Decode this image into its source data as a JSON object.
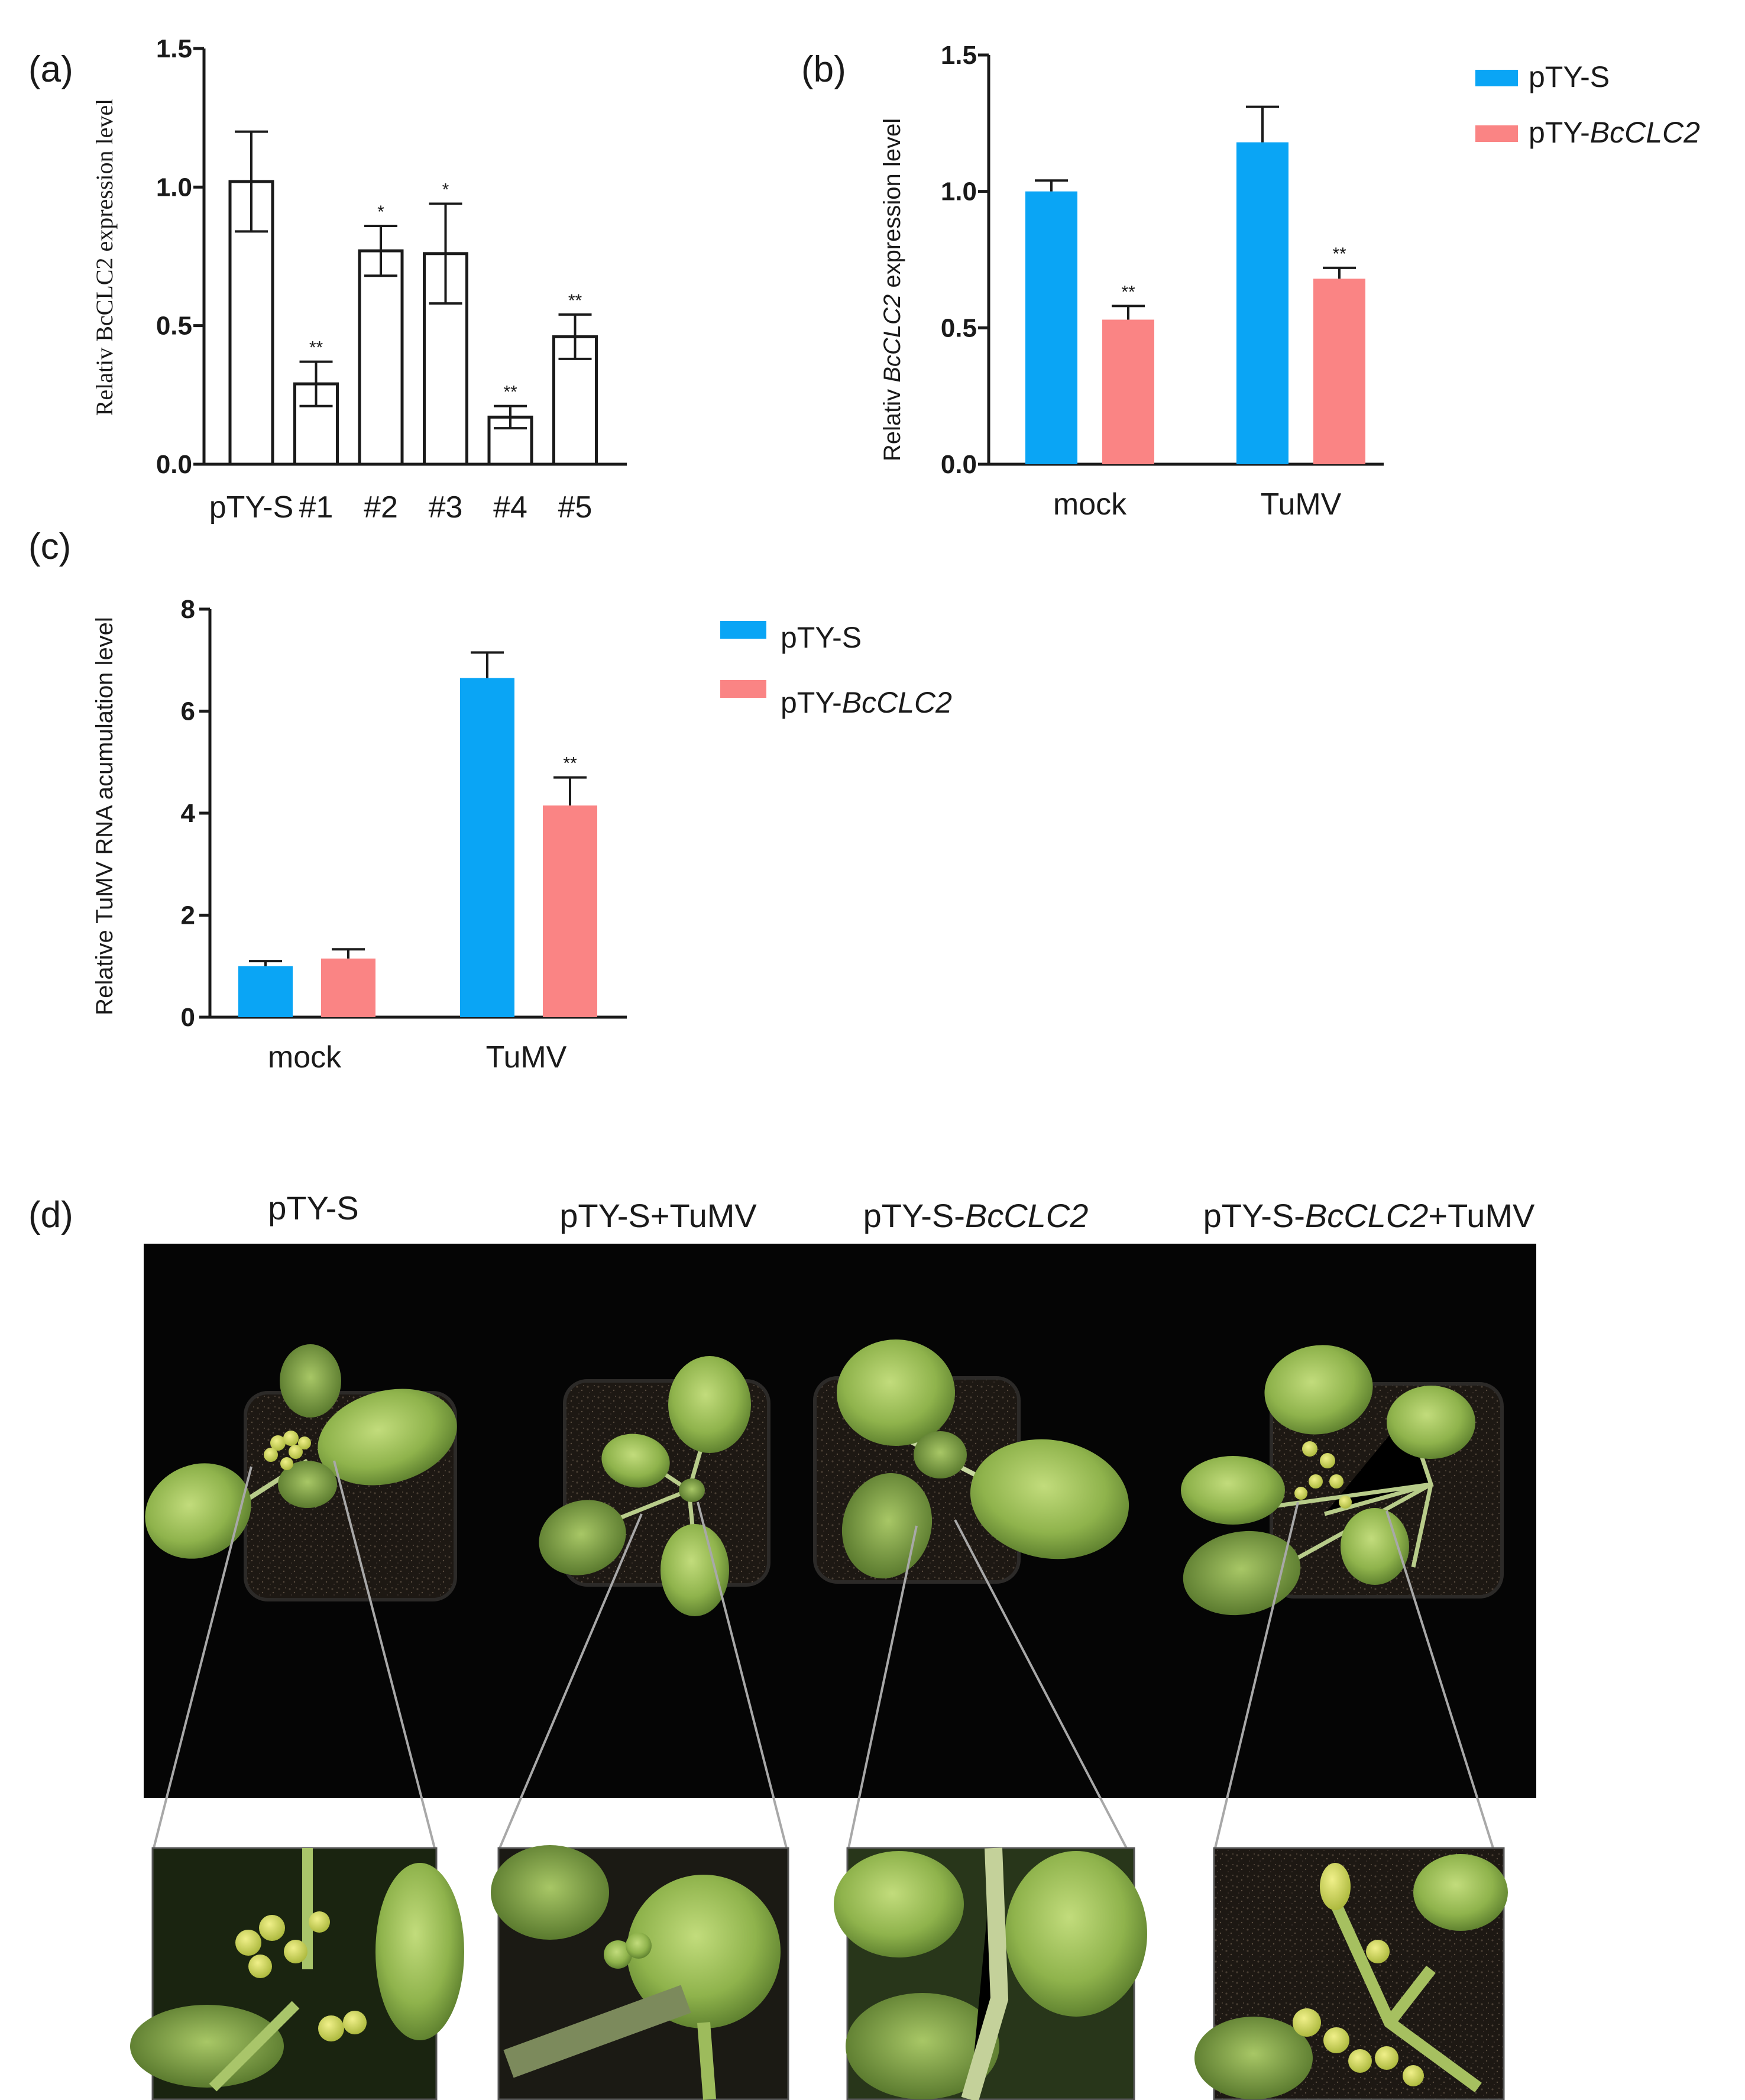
{
  "panels": {
    "a": "(a)",
    "b": "(b)",
    "c": "(c)",
    "d": "(d)"
  },
  "colors": {
    "pTY-S": "#0aa5f5",
    "pTY-BcCLC2": "#fa8484",
    "axis": "#1a1a1a",
    "photo_bg": "#050505"
  },
  "chart_data": [
    {
      "id": "a",
      "type": "bar",
      "ylabel": "Relativ BcCLC2 expression level",
      "ylim": [
        0,
        1.5
      ],
      "yticks": [
        "0.0",
        "0.5",
        "1.0",
        "1.5"
      ],
      "categories": [
        "pTY-S",
        "#1",
        "#2",
        "#3",
        "#4",
        "#5"
      ],
      "values": [
        1.02,
        0.29,
        0.77,
        0.76,
        0.17,
        0.46
      ],
      "errors": [
        0.18,
        0.08,
        0.09,
        0.18,
        0.04,
        0.08
      ],
      "significance": [
        "",
        "**",
        "*",
        "*",
        "**",
        "**"
      ],
      "fill": "none",
      "grid": false
    },
    {
      "id": "b",
      "type": "bar",
      "ylabel": "Relativ BcCLC2 expression level",
      "ylim": [
        0,
        1.5
      ],
      "yticks": [
        "0.0",
        "0.5",
        "1.0",
        "1.5"
      ],
      "categories": [
        "mock",
        "TuMV"
      ],
      "series": [
        {
          "name": "pTY-S",
          "values": [
            1.0,
            1.18
          ],
          "errors": [
            0.04,
            0.13
          ],
          "significance": [
            "",
            ""
          ]
        },
        {
          "name": "pTY-BcCLC2",
          "values": [
            0.53,
            0.68
          ],
          "errors": [
            0.05,
            0.04
          ],
          "significance": [
            "**",
            "**"
          ]
        }
      ],
      "legend": "top-right",
      "grid": false
    },
    {
      "id": "c",
      "type": "bar",
      "ylabel": "Relative TuMV RNA acumulation level",
      "ylim": [
        0,
        8
      ],
      "yticks": [
        "0",
        "2",
        "4",
        "6",
        "8"
      ],
      "categories": [
        "mock",
        "TuMV"
      ],
      "series": [
        {
          "name": "pTY-S",
          "values": [
            1.0,
            6.65
          ],
          "errors": [
            0.1,
            0.5
          ],
          "significance": [
            "",
            ""
          ]
        },
        {
          "name": "pTY-BcCLC2",
          "values": [
            1.15,
            4.15
          ],
          "errors": [
            0.18,
            0.55
          ],
          "significance": [
            "",
            "**"
          ]
        }
      ],
      "legend": "right",
      "grid": false
    }
  ],
  "photos": {
    "titles": [
      "pTY-S",
      "pTY-S+TuMV",
      "pTY-S-BcCLC2",
      "pTY-S-BcCLC2+TuMV"
    ]
  }
}
